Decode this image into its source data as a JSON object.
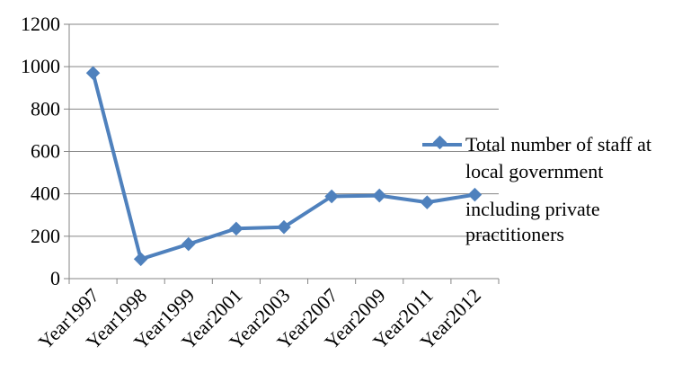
{
  "chart_data": {
    "type": "line",
    "categories": [
      "Year1997",
      "Year1998",
      "Year1999",
      "Year2001",
      "Year2003",
      "Year2007",
      "Year2009",
      "Year2011",
      "Year2012"
    ],
    "series": [
      {
        "name": "Total number of staff at local government including private practitioners",
        "values": [
          970,
          92,
          163,
          236,
          243,
          388,
          392,
          360,
          396
        ],
        "color": "#4f81bd"
      }
    ],
    "y_ticks": [
      "0",
      "200",
      "400",
      "600",
      "800",
      "1000",
      "1200"
    ],
    "ylim": [
      0,
      1200
    ],
    "grid": true,
    "legend_position": "right",
    "legend": {
      "line1": "Total number of staff at",
      "line2": "local government",
      "line3": "including private",
      "line4": "practitioners"
    }
  }
}
